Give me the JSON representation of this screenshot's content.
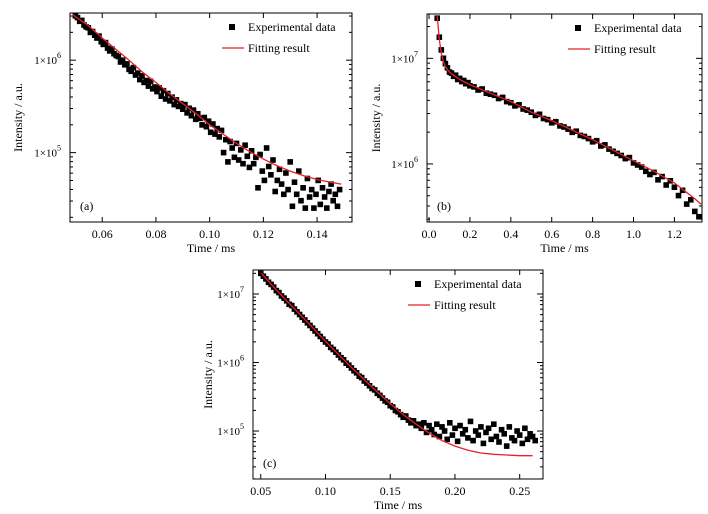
{
  "figure": {
    "legend": {
      "marker_label": "Experimental data",
      "line_label": "Fitting result"
    },
    "colors": {
      "data": "#000000",
      "fit": "#e8202a",
      "axis": "#000000"
    }
  },
  "chart_data": [
    {
      "type": "scatter",
      "panel_label": "(a)",
      "xlabel": "Time / ms",
      "ylabel": "Intensity / a.u.",
      "xlim": [
        0.048,
        0.153
      ],
      "ylim_log10": [
        4.25,
        6.51
      ],
      "yscale": "log",
      "xticks": [
        0.06,
        0.08,
        0.1,
        0.12,
        0.14
      ],
      "xtick_labels": [
        "0.06",
        "0.08",
        "0.10",
        "0.12",
        "0.14"
      ],
      "yticks_log10": [
        5,
        6
      ],
      "ytick_labels": [
        "1×10",
        "1×10"
      ],
      "ytick_exponents": [
        "5",
        "6"
      ],
      "legend_position": "top-right",
      "series": [
        {
          "role": "experimental",
          "x": [
            0.05,
            0.0508,
            0.0516,
            0.0524,
            0.0532,
            0.054,
            0.0548,
            0.0556,
            0.0564,
            0.0572,
            0.058,
            0.0588,
            0.0596,
            0.0604,
            0.0612,
            0.062,
            0.0628,
            0.0636,
            0.0644,
            0.0652,
            0.066,
            0.0668,
            0.0676,
            0.0684,
            0.0692,
            0.07,
            0.0708,
            0.0716,
            0.0724,
            0.0732,
            0.074,
            0.0748,
            0.0756,
            0.0764,
            0.0772,
            0.078,
            0.0788,
            0.0796,
            0.0804,
            0.0812,
            0.082,
            0.0828,
            0.0836,
            0.0844,
            0.0852,
            0.086,
            0.0868,
            0.0876,
            0.0884,
            0.0892,
            0.09,
            0.0908,
            0.0916,
            0.0924,
            0.0932,
            0.094,
            0.0948,
            0.0956,
            0.0964,
            0.0972,
            0.098,
            0.0988,
            0.0996,
            0.1004,
            0.1012,
            0.102,
            0.1028,
            0.1036,
            0.1044,
            0.1052,
            0.106,
            0.1068,
            0.1076,
            0.1084,
            0.1092,
            0.11,
            0.1108,
            0.1116,
            0.1124,
            0.1132,
            0.114,
            0.1148,
            0.1156,
            0.1164,
            0.1172,
            0.118,
            0.1188,
            0.1196,
            0.1204,
            0.1212,
            0.122,
            0.1228,
            0.1236,
            0.1244,
            0.1252,
            0.126,
            0.1268,
            0.1276,
            0.1284,
            0.1292,
            0.13,
            0.1308,
            0.1316,
            0.1324,
            0.1332,
            0.134,
            0.1348,
            0.1356,
            0.1364,
            0.1372,
            0.138,
            0.1388,
            0.1396,
            0.1404,
            0.1412,
            0.142,
            0.1428,
            0.1436,
            0.1444,
            0.1452,
            0.146,
            0.1468,
            0.1476,
            0.1484
          ],
          "y_log10": [
            6.48,
            6.46,
            6.42,
            6.43,
            6.38,
            6.36,
            6.35,
            6.3,
            6.31,
            6.27,
            6.24,
            6.26,
            6.2,
            6.17,
            6.19,
            6.13,
            6.1,
            6.12,
            6.07,
            6.05,
            6.04,
            5.98,
            6.0,
            5.95,
            5.96,
            5.9,
            5.88,
            5.92,
            5.84,
            5.86,
            5.79,
            5.83,
            5.76,
            5.78,
            5.72,
            5.77,
            5.69,
            5.71,
            5.66,
            5.7,
            5.61,
            5.67,
            5.58,
            5.64,
            5.56,
            5.6,
            5.52,
            5.57,
            5.5,
            5.53,
            5.47,
            5.52,
            5.43,
            5.48,
            5.4,
            5.46,
            5.36,
            5.42,
            5.37,
            5.3,
            5.38,
            5.28,
            5.34,
            5.22,
            5.31,
            5.2,
            5.26,
            5.17,
            5.24,
            5.0,
            5.14,
            4.9,
            5.12,
            5.05,
            4.95,
            5.1,
            4.92,
            5.03,
            4.88,
            5.08,
            4.96,
            4.84,
            5.02,
            4.88,
            4.95,
            4.62,
            4.98,
            4.8,
            4.7,
            5.05,
            4.85,
            4.76,
            4.92,
            4.58,
            4.7,
            4.82,
            4.66,
            4.55,
            4.78,
            4.6,
            4.9,
            4.42,
            4.68,
            4.55,
            4.8,
            4.48,
            4.62,
            4.4,
            4.72,
            4.52,
            4.6,
            4.4,
            4.55,
            4.7,
            4.44,
            4.62,
            4.52,
            4.4,
            4.58,
            4.66,
            4.48,
            4.55,
            4.42,
            4.6
          ]
        },
        {
          "role": "fit",
          "x": [
            0.049,
            0.055,
            0.06,
            0.065,
            0.07,
            0.075,
            0.08,
            0.085,
            0.09,
            0.095,
            0.1,
            0.105,
            0.11,
            0.115,
            0.12,
            0.125,
            0.13,
            0.135,
            0.14,
            0.145,
            0.149
          ],
          "y_log10": [
            6.49,
            6.37,
            6.24,
            6.12,
            6.0,
            5.87,
            5.76,
            5.64,
            5.53,
            5.42,
            5.3,
            5.2,
            5.1,
            5.01,
            4.93,
            4.86,
            4.8,
            4.75,
            4.71,
            4.68,
            4.66
          ]
        }
      ]
    },
    {
      "type": "scatter",
      "panel_label": "(b)",
      "xlabel": "Time / ms",
      "ylabel": "Intensity / a.u.",
      "xlim": [
        -0.01,
        1.335
      ],
      "ylim_log10": [
        5.45,
        7.42
      ],
      "yscale": "log",
      "xticks": [
        0.0,
        0.2,
        0.4,
        0.6,
        0.8,
        1.0,
        1.2
      ],
      "xtick_labels": [
        "0.0",
        "0.2",
        "0.4",
        "0.6",
        "0.8",
        "1.0",
        "1.2"
      ],
      "yticks_log10": [
        6,
        7
      ],
      "ytick_labels": [
        "1×10",
        "1×10"
      ],
      "ytick_exponents": [
        "6",
        "7"
      ],
      "legend_position": "top-right",
      "series": [
        {
          "role": "experimental",
          "x": [
            0.04,
            0.05,
            0.06,
            0.07,
            0.08,
            0.09,
            0.1,
            0.11,
            0.12,
            0.13,
            0.14,
            0.15,
            0.16,
            0.17,
            0.18,
            0.19,
            0.2,
            0.22,
            0.24,
            0.26,
            0.28,
            0.3,
            0.32,
            0.34,
            0.36,
            0.38,
            0.4,
            0.42,
            0.44,
            0.46,
            0.48,
            0.5,
            0.52,
            0.54,
            0.56,
            0.58,
            0.6,
            0.62,
            0.64,
            0.66,
            0.68,
            0.7,
            0.72,
            0.74,
            0.76,
            0.78,
            0.8,
            0.82,
            0.84,
            0.86,
            0.88,
            0.9,
            0.92,
            0.94,
            0.96,
            0.98,
            1.0,
            1.02,
            1.04,
            1.06,
            1.08,
            1.1,
            1.12,
            1.14,
            1.16,
            1.18,
            1.2,
            1.22,
            1.24,
            1.26,
            1.28,
            1.3,
            1.32
          ],
          "y_log10": [
            7.38,
            7.2,
            7.08,
            7.0,
            6.95,
            6.91,
            6.87,
            6.86,
            6.83,
            6.84,
            6.8,
            6.81,
            6.78,
            6.79,
            6.76,
            6.77,
            6.74,
            6.73,
            6.7,
            6.71,
            6.67,
            6.66,
            6.65,
            6.62,
            6.63,
            6.59,
            6.58,
            6.55,
            6.56,
            6.52,
            6.51,
            6.49,
            6.46,
            6.47,
            6.43,
            6.42,
            6.39,
            6.4,
            6.36,
            6.35,
            6.33,
            6.3,
            6.31,
            6.27,
            6.26,
            6.24,
            6.21,
            6.22,
            6.17,
            6.18,
            6.14,
            6.12,
            6.1,
            6.08,
            6.05,
            6.06,
            6.01,
            5.99,
            5.97,
            5.93,
            5.9,
            5.92,
            5.85,
            5.88,
            5.8,
            5.84,
            5.78,
            5.7,
            5.75,
            5.62,
            5.66,
            5.55,
            5.5
          ]
        },
        {
          "role": "fit",
          "x": [
            0.04,
            0.05,
            0.06,
            0.07,
            0.08,
            0.1,
            0.12,
            0.15,
            0.2,
            0.3,
            0.4,
            0.5,
            0.6,
            0.7,
            0.8,
            0.9,
            1.0,
            1.1,
            1.2,
            1.3,
            1.33
          ],
          "y_log10": [
            7.4,
            7.18,
            7.05,
            6.97,
            6.92,
            6.87,
            6.84,
            6.8,
            6.75,
            6.67,
            6.59,
            6.49,
            6.41,
            6.32,
            6.23,
            6.13,
            6.03,
            5.93,
            5.82,
            5.67,
            5.62
          ]
        }
      ]
    },
    {
      "type": "scatter",
      "panel_label": "(c)",
      "xlabel": "Time / ms",
      "ylabel": "Intensity / a.u.",
      "xlim": [
        0.044,
        0.268
      ],
      "ylim_log10": [
        4.3,
        7.35
      ],
      "yscale": "log",
      "xticks": [
        0.05,
        0.1,
        0.15,
        0.2,
        0.25
      ],
      "xtick_labels": [
        "0.05",
        "0.10",
        "0.15",
        "0.20",
        "0.25"
      ],
      "yticks_log10": [
        5,
        6,
        7
      ],
      "ytick_labels": [
        "1×10",
        "1×10",
        "1×10"
      ],
      "ytick_exponents": [
        "5",
        "6",
        "7"
      ],
      "legend_position": "top-right",
      "series": [
        {
          "role": "experimental",
          "x": [
            0.05,
            0.052,
            0.054,
            0.056,
            0.058,
            0.06,
            0.062,
            0.064,
            0.066,
            0.068,
            0.07,
            0.072,
            0.074,
            0.076,
            0.078,
            0.08,
            0.082,
            0.084,
            0.086,
            0.088,
            0.09,
            0.092,
            0.094,
            0.096,
            0.098,
            0.1,
            0.102,
            0.104,
            0.106,
            0.108,
            0.11,
            0.112,
            0.114,
            0.116,
            0.118,
            0.12,
            0.122,
            0.124,
            0.126,
            0.128,
            0.13,
            0.132,
            0.134,
            0.136,
            0.138,
            0.14,
            0.142,
            0.144,
            0.146,
            0.148,
            0.15,
            0.152,
            0.154,
            0.156,
            0.158,
            0.16,
            0.162,
            0.164,
            0.166,
            0.168,
            0.17,
            0.172,
            0.174,
            0.176,
            0.178,
            0.18,
            0.182,
            0.184,
            0.186,
            0.188,
            0.19,
            0.192,
            0.194,
            0.196,
            0.198,
            0.2,
            0.202,
            0.204,
            0.206,
            0.208,
            0.21,
            0.212,
            0.214,
            0.216,
            0.218,
            0.22,
            0.222,
            0.224,
            0.226,
            0.228,
            0.23,
            0.232,
            0.234,
            0.236,
            0.238,
            0.24,
            0.242,
            0.244,
            0.246,
            0.248,
            0.25,
            0.252,
            0.254,
            0.256,
            0.258,
            0.26,
            0.262
          ],
          "y_log10": [
            7.3,
            7.26,
            7.22,
            7.17,
            7.14,
            7.1,
            7.05,
            7.02,
            6.97,
            6.94,
            6.9,
            6.85,
            6.83,
            6.78,
            6.74,
            6.7,
            6.66,
            6.62,
            6.58,
            6.54,
            6.5,
            6.46,
            6.42,
            6.38,
            6.34,
            6.3,
            6.27,
            6.22,
            6.19,
            6.15,
            6.11,
            6.07,
            6.04,
            5.99,
            5.96,
            5.92,
            5.88,
            5.85,
            5.8,
            5.78,
            5.73,
            5.7,
            5.66,
            5.62,
            5.6,
            5.55,
            5.52,
            5.48,
            5.44,
            5.42,
            5.37,
            5.35,
            5.3,
            5.28,
            5.24,
            5.2,
            5.22,
            5.16,
            5.12,
            5.15,
            5.08,
            5.1,
            5.04,
            5.12,
            4.98,
            5.08,
            5.02,
            4.95,
            5.1,
            4.92,
            5.06,
            5.0,
            4.88,
            5.12,
            4.94,
            5.04,
            4.85,
            5.08,
            4.96,
            5.02,
            4.9,
            5.14,
            4.86,
            5.0,
            4.94,
            5.06,
            4.82,
            4.98,
            5.04,
            4.88,
            5.1,
            4.92,
            4.84,
            5.02,
            4.96,
            4.78,
            5.06,
            4.9,
            4.86,
            5.0,
            4.94,
            4.82,
            5.04,
            4.88,
            4.96,
            4.92,
            4.86
          ]
        },
        {
          "role": "fit",
          "x": [
            0.05,
            0.06,
            0.07,
            0.08,
            0.09,
            0.1,
            0.11,
            0.12,
            0.13,
            0.14,
            0.15,
            0.16,
            0.17,
            0.18,
            0.19,
            0.2,
            0.21,
            0.22,
            0.23,
            0.24,
            0.25,
            0.26
          ],
          "y_log10": [
            7.31,
            7.1,
            6.9,
            6.71,
            6.51,
            6.31,
            6.12,
            5.93,
            5.75,
            5.57,
            5.4,
            5.24,
            5.1,
            4.97,
            4.86,
            4.78,
            4.72,
            4.68,
            4.66,
            4.65,
            4.64,
            4.64
          ]
        }
      ]
    }
  ]
}
